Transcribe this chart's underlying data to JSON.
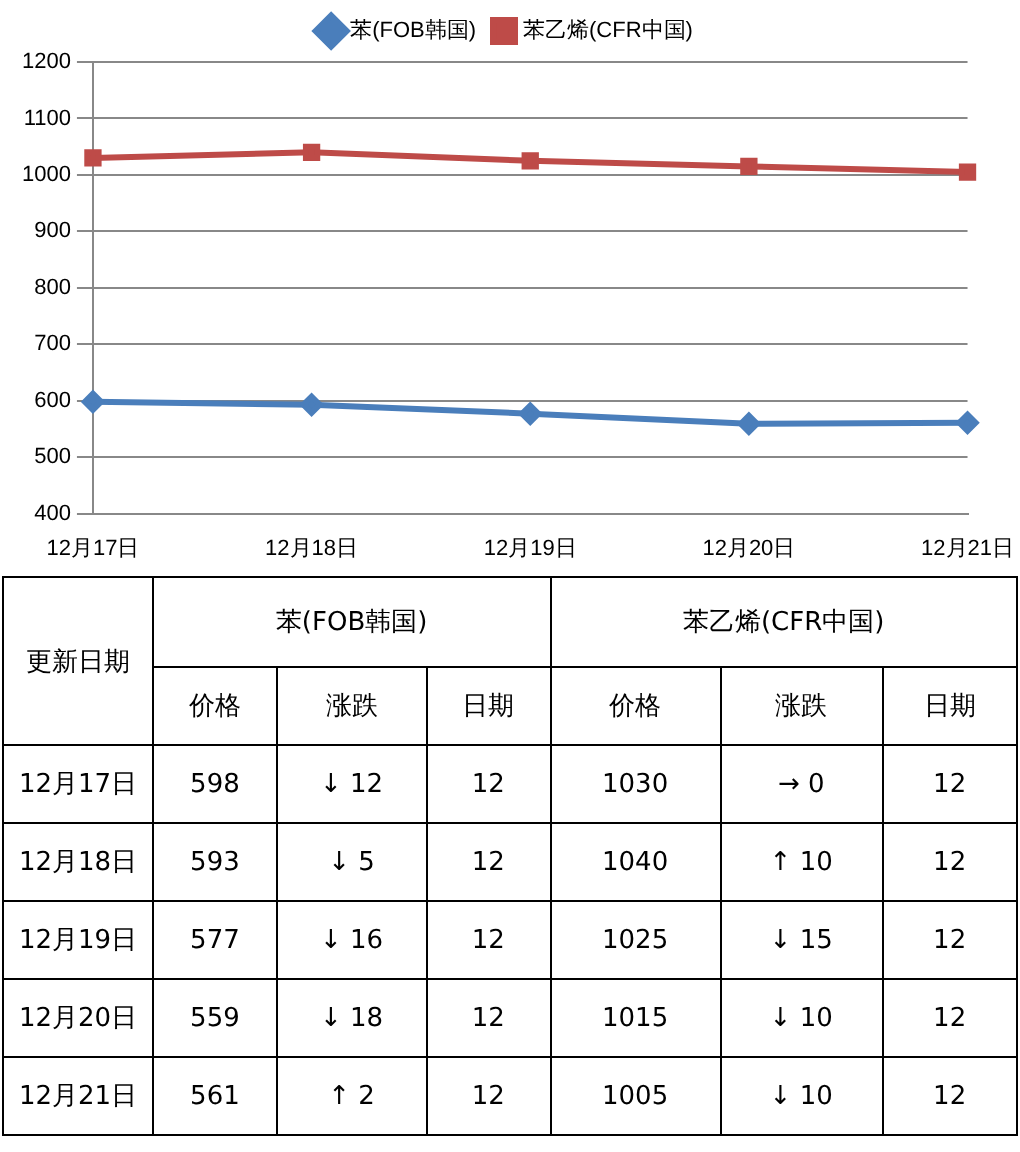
{
  "chart_data": {
    "type": "line",
    "categories": [
      "12月17日",
      "12月18日",
      "12月19日",
      "12月20日",
      "12月21日"
    ],
    "series": [
      {
        "name": "苯(FOB韩国)",
        "color": "#4a7ebb",
        "marker": "diamond",
        "values": [
          598,
          593,
          577,
          559,
          561
        ]
      },
      {
        "name": "苯乙烯(CFR中国)",
        "color": "#be4b48",
        "marker": "square",
        "values": [
          1030,
          1040,
          1025,
          1015,
          1005
        ]
      }
    ],
    "ylim": [
      400,
      1200
    ],
    "yticks": [
      400,
      500,
      600,
      700,
      800,
      900,
      1000,
      1100,
      1200
    ],
    "grid": "y",
    "legend": "top",
    "annotations": [
      "更新日期",
      "价格",
      "涨跌",
      "日期",
      "598",
      "593",
      "577",
      "559",
      "561",
      "↓ 12",
      "↓ 5",
      "↓ 16",
      "↓ 18",
      "↑ 2",
      "12",
      "12",
      "12",
      "12",
      "12",
      "1030",
      "1040",
      "1025",
      "1015",
      "1005",
      "→ 0",
      "↑ 10",
      "↓ 15",
      "↓ 10",
      "↓ 10",
      "12",
      "12",
      "12",
      "12",
      "12"
    ]
  }
}
